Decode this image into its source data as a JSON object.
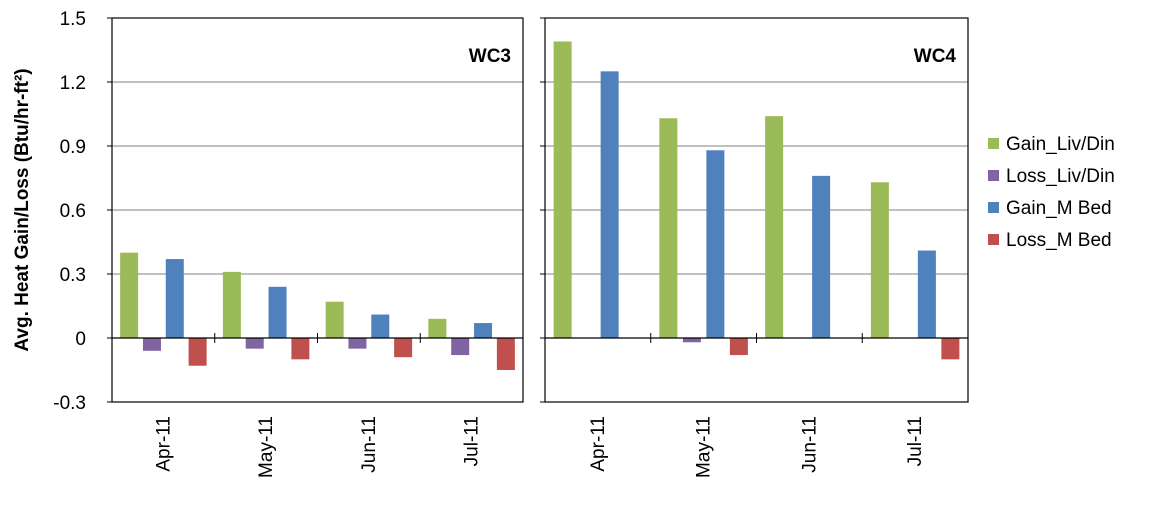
{
  "chart_data": {
    "type": "bar",
    "ylabel": "Avg. Heat Gain/Loss (Btu/hr-ft²)",
    "ylim": [
      -0.3,
      1.5
    ],
    "yticks": [
      "1.5",
      "1.2",
      "0.9",
      "0.6",
      "0.3",
      "0",
      "-0.3"
    ],
    "ytick_values": [
      1.5,
      1.2,
      0.9,
      0.6,
      0.3,
      0,
      -0.3
    ],
    "grid": true,
    "legend_position": "right",
    "categories": [
      "Apr-11",
      "May-11",
      "Jun-11",
      "Jul-11"
    ],
    "series_meta": [
      {
        "name": "Gain_Liv/Din",
        "color": "#9BBB59"
      },
      {
        "name": "Loss_Liv/Din",
        "color": "#8064A2"
      },
      {
        "name": "Gain_M Bed",
        "color": "#4F81BD"
      },
      {
        "name": "Loss_M Bed",
        "color": "#C0504D"
      }
    ],
    "panels": [
      {
        "title": "WC3",
        "series": [
          {
            "name": "Gain_Liv/Din",
            "values": [
              0.4,
              0.31,
              0.17,
              0.09
            ]
          },
          {
            "name": "Loss_Liv/Din",
            "values": [
              -0.06,
              -0.05,
              -0.05,
              -0.08
            ]
          },
          {
            "name": "Gain_M Bed",
            "values": [
              0.37,
              0.24,
              0.11,
              0.07
            ]
          },
          {
            "name": "Loss_M Bed",
            "values": [
              -0.13,
              -0.1,
              -0.09,
              -0.15
            ]
          }
        ]
      },
      {
        "title": "WC4",
        "series": [
          {
            "name": "Gain_Liv/Din",
            "values": [
              1.39,
              1.03,
              1.04,
              0.73
            ]
          },
          {
            "name": "Loss_Liv/Din",
            "values": [
              0,
              -0.02,
              0,
              0
            ]
          },
          {
            "name": "Gain_M Bed",
            "values": [
              1.25,
              0.88,
              0.76,
              0.41
            ]
          },
          {
            "name": "Loss_M Bed",
            "values": [
              0,
              -0.08,
              0,
              -0.1
            ]
          }
        ]
      }
    ]
  }
}
